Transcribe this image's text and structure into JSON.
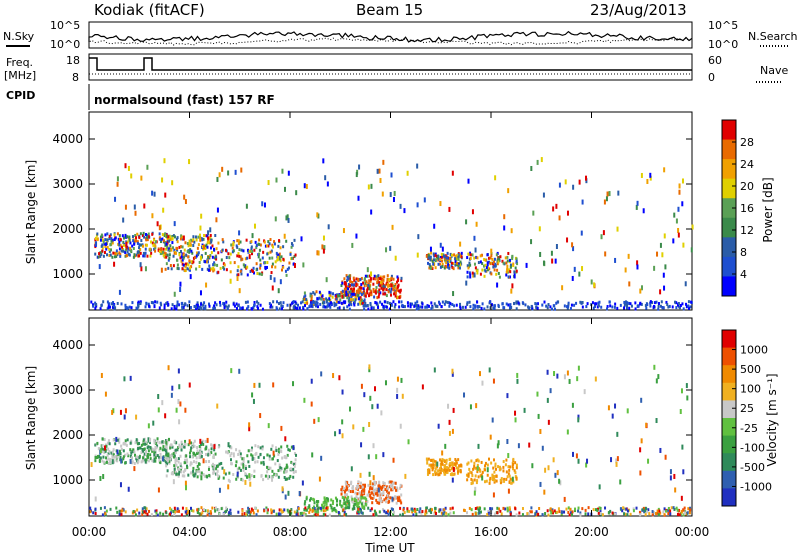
{
  "header": {
    "station": "Kodiak (fitACF)",
    "beam": "Beam 15",
    "date": "23/Aug/2013"
  },
  "top_panels": {
    "nsky_label": "N.Sky",
    "nsky_ticks": [
      "10^5",
      "10^0"
    ],
    "nsearch_label": "N.Search",
    "nsearch_ticks": [
      "10^5",
      "10^0"
    ],
    "freq_label_1": "Freq.",
    "freq_label_2": "[MHz]",
    "freq_ticks": [
      "18",
      "8"
    ],
    "nave_label": "Nave",
    "nave_ticks": [
      "60",
      "0"
    ],
    "cpid_label": "CPID",
    "cpid_text": "normalsound (fast) 157 RF"
  },
  "chart_data": [
    {
      "type": "heatmap",
      "name": "power",
      "ylabel": "Slant Range [km]",
      "yticks": [
        1000,
        2000,
        3000,
        4000
      ],
      "ylim": [
        200,
        4600
      ],
      "xlim": [
        0,
        24
      ],
      "colorbar": {
        "label": "Power [dB]",
        "ticks": [
          "28",
          "24",
          "20",
          "16",
          "12",
          "8",
          "4"
        ],
        "colors": [
          "#0000ff",
          "#1e4fd0",
          "#2a5ca8",
          "#3a8a4a",
          "#5aa055",
          "#e0d000",
          "#f0a000",
          "#e86a00",
          "#e00000"
        ]
      }
    },
    {
      "type": "heatmap",
      "name": "velocity",
      "ylabel": "Slant Range [km]",
      "yticks": [
        1000,
        2000,
        3000,
        4000
      ],
      "ylim": [
        200,
        4600
      ],
      "xlim": [
        0,
        24
      ],
      "xlabel": "Time UT",
      "xticks": [
        "00:00",
        "04:00",
        "08:00",
        "12:00",
        "16:00",
        "20:00",
        "00:00"
      ],
      "colorbar": {
        "label": "Velocity [m s⁻¹]",
        "ticks": [
          "1000",
          "500",
          "100",
          "25",
          "-25",
          "-100",
          "-500",
          "-1000"
        ],
        "colors": [
          "#2030c0",
          "#2f5fb0",
          "#2f8a5a",
          "#3aa040",
          "#60c040",
          "#c8c8c8",
          "#f0b020",
          "#f08a00",
          "#ee5000",
          "#e00000"
        ]
      }
    }
  ]
}
